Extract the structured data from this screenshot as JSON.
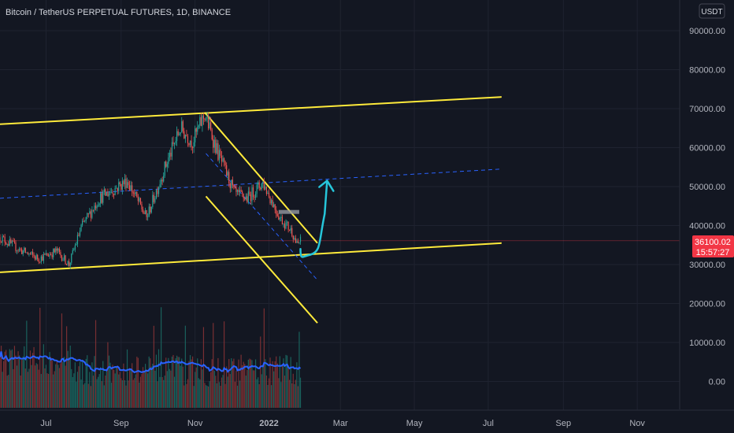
{
  "chart_data": {
    "type": "candlestick",
    "title": "Bitcoin / TetherUS PERPETUAL FUTURES, 1D, BINANCE",
    "currency": "USDT",
    "y_ticks": [
      90000,
      80000,
      70000,
      60000,
      50000,
      40000,
      30000,
      20000,
      10000,
      0
    ],
    "y_tick_labels": [
      "90000.00",
      "80000.00",
      "70000.00",
      "60000.00",
      "50000.00",
      "40000.00",
      "30000.00",
      "20000.00",
      "10000.00",
      "0.00"
    ],
    "ylim": [
      -7000,
      97000
    ],
    "x_labels": [
      "Jul",
      "Sep",
      "Nov",
      "2022",
      "Mar",
      "May",
      "Jul",
      "Sep",
      "Nov"
    ],
    "x_range": [
      "2021-05-24",
      "2022-12-06"
    ],
    "current_price": {
      "value": 36100.02,
      "label": "36100.02",
      "countdown": "15:57:27",
      "color": "#f23645"
    },
    "colors": {
      "up": "#26a69a",
      "down": "#ef5350",
      "background": "#131722",
      "channel": "#ffeb3b",
      "volume_ma": "#2962ff",
      "arrow": "#26c6da"
    },
    "price_path": [
      {
        "date": "2021-05-24",
        "price": 37000
      },
      {
        "date": "2021-06-08",
        "price": 34000
      },
      {
        "date": "2021-06-25",
        "price": 31500
      },
      {
        "date": "2021-07-10",
        "price": 33500
      },
      {
        "date": "2021-07-20",
        "price": 30000
      },
      {
        "date": "2021-07-30",
        "price": 39500
      },
      {
        "date": "2021-08-14",
        "price": 47000
      },
      {
        "date": "2021-09-06",
        "price": 51500
      },
      {
        "date": "2021-09-22",
        "price": 42000
      },
      {
        "date": "2021-10-06",
        "price": 54000
      },
      {
        "date": "2021-10-20",
        "price": 65000
      },
      {
        "date": "2021-10-30",
        "price": 61500
      },
      {
        "date": "2021-11-09",
        "price": 68500
      },
      {
        "date": "2021-11-20",
        "price": 58500
      },
      {
        "date": "2021-12-04",
        "price": 48000
      },
      {
        "date": "2021-12-14",
        "price": 47000
      },
      {
        "date": "2021-12-27",
        "price": 51000
      },
      {
        "date": "2022-01-10",
        "price": 42000
      },
      {
        "date": "2022-01-20",
        "price": 38500
      },
      {
        "date": "2022-01-24",
        "price": 35000
      },
      {
        "date": "2022-01-27",
        "price": 36100
      }
    ],
    "drawings": {
      "channel_upper": [
        {
          "date": "2021-05-24",
          "price": 66000
        },
        {
          "date": "2022-07-12",
          "price": 73000
        }
      ],
      "channel_lower": [
        {
          "date": "2021-05-24",
          "price": 28000
        },
        {
          "date": "2022-07-12",
          "price": 35500
        }
      ],
      "channel_mid_dashed": [
        {
          "date": "2021-05-24",
          "price": 47000
        },
        {
          "date": "2022-07-12",
          "price": 54500
        }
      ],
      "down_upper": [
        {
          "date": "2021-11-09",
          "price": 69000
        },
        {
          "date": "2022-02-10",
          "price": 35500
        }
      ],
      "down_lower": [
        {
          "date": "2021-11-10",
          "price": 47500
        },
        {
          "date": "2022-02-10",
          "price": 15000
        }
      ],
      "down_mid_dashed": [
        {
          "date": "2021-11-10",
          "price": 58500
        },
        {
          "date": "2022-02-10",
          "price": 26000
        }
      ],
      "resistance_box": [
        {
          "date": "2022-01-09",
          "price": 44000
        },
        {
          "date": "2022-01-26",
          "price": 43300
        }
      ],
      "projection_arrow": [
        {
          "date": "2022-01-27",
          "price": 34000
        },
        {
          "date": "2022-02-04",
          "price": 32500
        },
        {
          "date": "2022-02-11",
          "price": 35500
        },
        {
          "date": "2022-02-16",
          "price": 43000
        },
        {
          "date": "2022-02-18",
          "price": 51500
        }
      ]
    }
  }
}
